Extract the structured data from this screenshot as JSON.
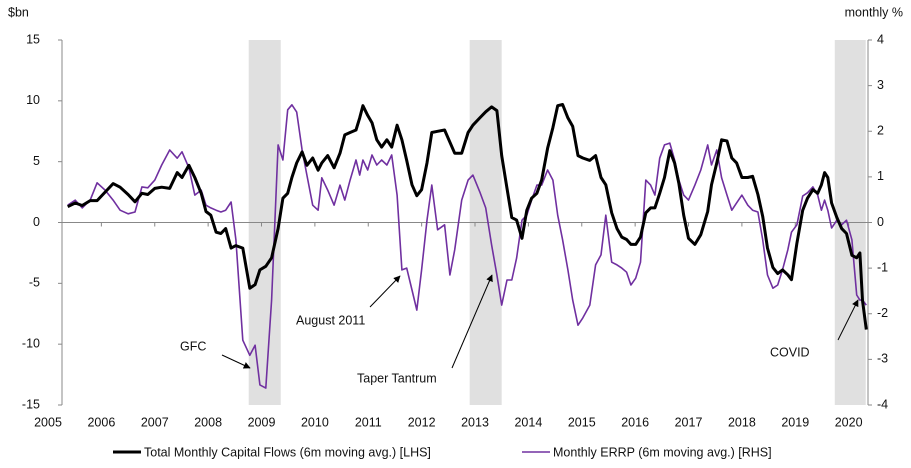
{
  "chart_data": {
    "type": "line",
    "y_label": "$bn",
    "y2_label": "monthly %",
    "x": [
      2005.37,
      2005.51,
      2005.64,
      2005.79,
      2005.92,
      2006.07,
      2006.22,
      2006.35,
      2006.5,
      2006.63,
      2006.76,
      2006.87,
      2007.0,
      2007.13,
      2007.28,
      2007.42,
      2007.51,
      2007.64,
      2007.75,
      2007.87,
      2007.96,
      2008.05,
      2008.15,
      2008.24,
      2008.33,
      2008.43,
      2008.52,
      2008.65,
      2008.78,
      2008.88,
      2008.97,
      2009.08,
      2009.19,
      2009.31,
      2009.4,
      2009.49,
      2009.57,
      2009.66,
      2009.76,
      2009.85,
      2009.96,
      2010.06,
      2010.13,
      2010.24,
      2010.36,
      2010.47,
      2010.56,
      2010.66,
      2010.77,
      2010.84,
      2010.9,
      2010.99,
      2011.07,
      2011.16,
      2011.25,
      2011.35,
      2011.44,
      2011.54,
      2011.63,
      2011.72,
      2011.82,
      2011.91,
      2012.0,
      2012.1,
      2012.19,
      2012.3,
      2012.43,
      2012.53,
      2012.62,
      2012.75,
      2012.87,
      2012.96,
      2013.09,
      2013.2,
      2013.31,
      2013.41,
      2013.5,
      2013.6,
      2013.69,
      2013.78,
      2013.88,
      2013.97,
      2014.06,
      2014.16,
      2014.25,
      2014.36,
      2014.46,
      2014.55,
      2014.64,
      2014.74,
      2014.83,
      2014.93,
      2015.02,
      2015.15,
      2015.26,
      2015.36,
      2015.45,
      2015.56,
      2015.66,
      2015.75,
      2015.84,
      2015.92,
      2016.01,
      2016.1,
      2016.2,
      2016.29,
      2016.37,
      2016.46,
      2016.55,
      2016.65,
      2016.74,
      2016.82,
      2016.91,
      2017.0,
      2017.12,
      2017.23,
      2017.36,
      2017.43,
      2017.53,
      2017.62,
      2017.72,
      2017.81,
      2017.9,
      2018.0,
      2018.11,
      2018.2,
      2018.3,
      2018.39,
      2018.48,
      2018.58,
      2018.67,
      2018.76,
      2018.86,
      2018.93,
      2019.03,
      2019.14,
      2019.23,
      2019.33,
      2019.42,
      2019.49,
      2019.55,
      2019.61,
      2019.68,
      2019.78,
      2019.87,
      2019.96,
      2020.06,
      2020.15,
      2020.21,
      2020.26,
      2020.33
    ],
    "series": [
      {
        "name": "Total Monthly Capital Flows (6m moving avg.) [LHS]",
        "color": "#000000",
        "axis": "y",
        "values": [
          1.3,
          1.6,
          1.4,
          1.8,
          1.8,
          2.5,
          3.2,
          2.9,
          2.3,
          1.7,
          2.4,
          2.3,
          2.8,
          2.9,
          2.8,
          4.1,
          3.7,
          4.7,
          3.7,
          2.4,
          0.9,
          0.6,
          -0.8,
          -0.9,
          -0.5,
          -2.1,
          -1.9,
          -2.1,
          -5.4,
          -5.1,
          -3.9,
          -3.6,
          -2.9,
          -0.5,
          2.0,
          2.4,
          3.7,
          4.9,
          5.8,
          4.7,
          5.3,
          4.3,
          4.9,
          5.5,
          4.5,
          5.7,
          7.2,
          7.4,
          7.6,
          8.6,
          9.6,
          8.8,
          8.2,
          6.8,
          6.2,
          6.8,
          6.2,
          8.0,
          6.8,
          5.1,
          3.1,
          2.2,
          2.7,
          4.9,
          7.4,
          7.5,
          7.6,
          6.6,
          5.7,
          5.7,
          7.4,
          8.0,
          8.6,
          9.1,
          9.5,
          9.2,
          5.5,
          2.8,
          0.4,
          0.2,
          -1.3,
          1.0,
          2.0,
          2.4,
          3.5,
          6.1,
          7.8,
          9.6,
          9.7,
          8.6,
          7.9,
          5.5,
          5.3,
          5.1,
          5.5,
          3.7,
          3.1,
          0.8,
          -0.5,
          -1.2,
          -1.4,
          -1.8,
          -1.8,
          -1.2,
          0.8,
          1.2,
          1.2,
          2.4,
          3.7,
          5.9,
          4.9,
          3.2,
          0.6,
          -1.3,
          -1.8,
          -1.0,
          0.9,
          3.1,
          4.9,
          6.8,
          6.7,
          5.3,
          4.9,
          3.7,
          3.7,
          3.8,
          2.3,
          0.5,
          -2.1,
          -3.7,
          -4.2,
          -3.9,
          -4.3,
          -4.7,
          -1.7,
          1.0,
          2.0,
          2.7,
          2.4,
          3.1,
          4.1,
          3.7,
          1.6,
          0.4,
          -0.5,
          -0.9,
          -2.7,
          -2.9,
          -2.5,
          -6.4,
          -8.8
        ]
      },
      {
        "name": "Monthly ERRP (6m moving avg.) [RHS]",
        "color": "#7030a0",
        "axis": "y2",
        "values": [
          0.38,
          0.49,
          0.32,
          0.49,
          0.87,
          0.71,
          0.49,
          0.27,
          0.19,
          0.23,
          0.78,
          0.76,
          0.93,
          1.26,
          1.59,
          1.41,
          1.55,
          1.2,
          0.6,
          0.71,
          0.38,
          0.32,
          0.27,
          0.23,
          0.27,
          0.45,
          -0.38,
          -2.58,
          -2.91,
          -2.69,
          -3.56,
          -3.63,
          -1.7,
          1.7,
          1.37,
          2.47,
          2.58,
          2.42,
          1.59,
          1.04,
          0.38,
          0.27,
          0.98,
          0.71,
          0.38,
          0.82,
          0.49,
          0.93,
          1.37,
          1.04,
          1.37,
          1.15,
          1.48,
          1.26,
          1.37,
          1.26,
          1.48,
          0.6,
          -1.04,
          -1.0,
          -1.48,
          -1.92,
          -1.04,
          0.05,
          0.82,
          -0.16,
          -0.05,
          -1.15,
          -0.6,
          0.49,
          0.93,
          1.04,
          0.67,
          0.32,
          -0.49,
          -1.15,
          -1.81,
          -1.26,
          -1.26,
          -0.78,
          0.05,
          0.16,
          0.49,
          0.82,
          0.82,
          1.15,
          0.93,
          0.16,
          -0.38,
          -1.04,
          -1.7,
          -2.25,
          -2.09,
          -1.81,
          -0.93,
          -0.71,
          0.16,
          -0.87,
          -0.93,
          -1.0,
          -1.09,
          -1.37,
          -1.22,
          -0.87,
          0.93,
          0.82,
          0.6,
          1.41,
          1.7,
          1.74,
          1.37,
          0.93,
          0.6,
          0.49,
          0.82,
          1.15,
          1.7,
          1.26,
          1.59,
          0.98,
          0.6,
          0.27,
          0.43,
          0.6,
          0.38,
          0.27,
          0.23,
          -0.38,
          -1.15,
          -1.44,
          -1.37,
          -1.04,
          -0.6,
          -0.21,
          -0.05,
          0.58,
          0.65,
          0.78,
          0.6,
          0.27,
          0.49,
          0.27,
          -0.12,
          0.05,
          -0.05,
          0.05,
          -0.38,
          -1.59,
          -1.7,
          -1.7,
          -1.81
        ]
      }
    ],
    "xlim": [
      2005,
      2020.4
    ],
    "xticks": [
      2005,
      2006,
      2007,
      2008,
      2009,
      2010,
      2011,
      2012,
      2013,
      2014,
      2015,
      2016,
      2017,
      2018,
      2019,
      2020
    ],
    "ylim": [
      -15,
      15
    ],
    "yticks": [
      -15,
      -10,
      -5,
      0,
      5,
      10,
      15
    ],
    "y2lim": [
      -4,
      4
    ],
    "y2ticks": [
      -4,
      -3,
      -2,
      -1,
      0,
      1,
      2,
      3,
      4
    ],
    "shaded": [
      [
        2008.76,
        2009.36
      ],
      [
        2012.9,
        2013.5
      ],
      [
        2019.74,
        2020.32
      ]
    ],
    "shade_color": "#e0e0e0",
    "annotations": [
      "GFC",
      "August 2011",
      "Taper Tantrum",
      "COVID"
    ],
    "legend": "bottom"
  }
}
